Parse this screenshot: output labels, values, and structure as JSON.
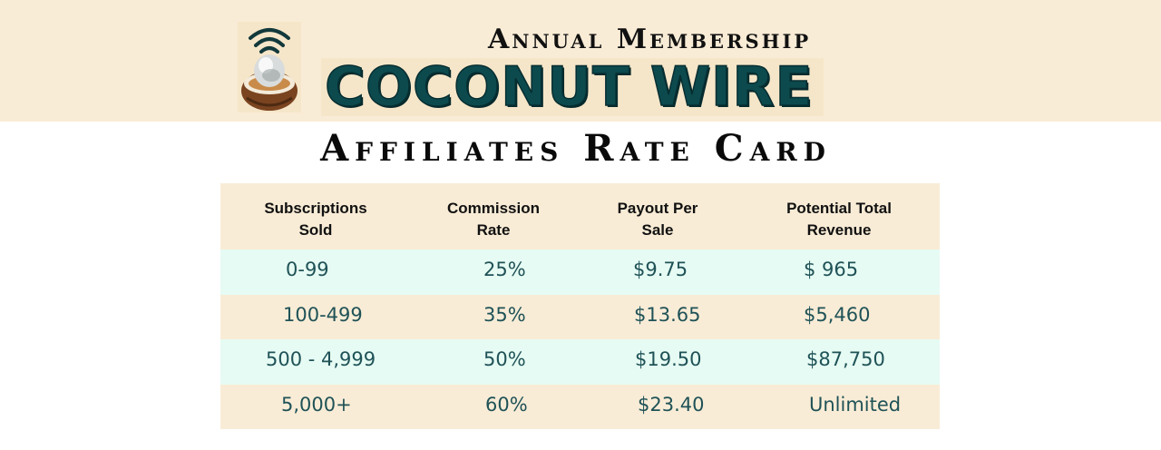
{
  "header": {
    "subtitle": "Annual Membership",
    "brand": "COCONUT WIRE",
    "title": "Affiliates Rate Card"
  },
  "table": {
    "columns": [
      "Subscriptions Sold",
      "Commission Rate",
      "Payout Per Sale",
      "Potential Total Revenue"
    ],
    "columns_lines": [
      [
        "Subscriptions",
        "Sold"
      ],
      [
        "Commission",
        "Rate"
      ],
      [
        "Payout Per",
        "Sale"
      ],
      [
        "Potential Total",
        "Revenue"
      ]
    ],
    "rows": [
      [
        "0-99",
        "25%",
        "$9.75",
        "$ 965"
      ],
      [
        "100-499",
        "35%",
        "$13.65",
        "$5,460"
      ],
      [
        "500 - 4,999",
        "50%",
        "$19.50",
        "$87,750"
      ],
      [
        "5,000+",
        "60%",
        "$23.40",
        "Unlimited"
      ]
    ]
  },
  "colors": {
    "banner": "#f9ecd6",
    "brand_text": "#0c4a4e",
    "row_mint": "#e6fbf3",
    "row_cream": "#f9ecd6",
    "cell_text": "#1f5257"
  },
  "icons": {
    "logo": "coconut-wireless-icon"
  }
}
